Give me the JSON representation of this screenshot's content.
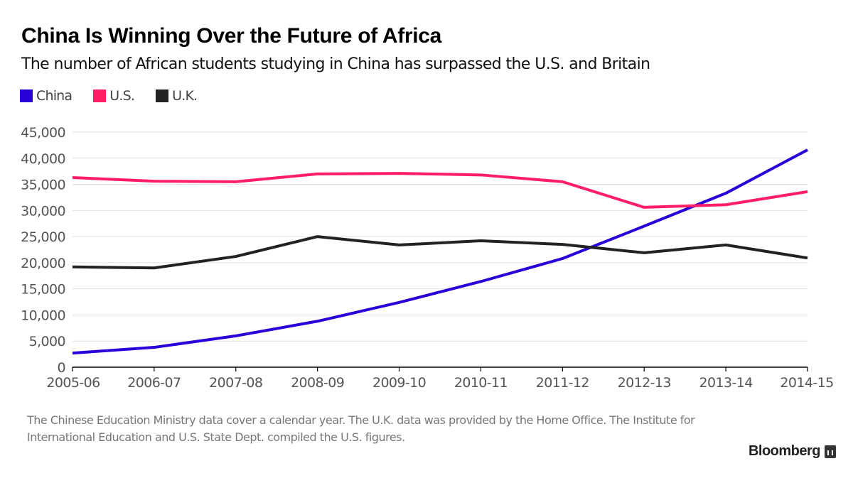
{
  "header": {
    "title": "China Is Winning Over the Future of Africa",
    "subtitle": "The number of African students studying in China has surpassed the U.S. and Britain"
  },
  "footnote": "The Chinese Education Ministry data cover a calendar year. The U.K. data was provided by the Home Office. The Institute for International Education and U.S. State Dept. compiled the U.S. figures.",
  "brand": "Bloomberg",
  "chart_data": {
    "type": "line",
    "title": "China Is Winning Over the Future of Africa",
    "subtitle": "The number of African students studying in China has surpassed the U.S. and Britain",
    "xlabel": "",
    "ylabel": "",
    "categories": [
      "2005-06",
      "2006-07",
      "2007-08",
      "2008-09",
      "2009-10",
      "2010-11",
      "2011-12",
      "2012-13",
      "2013-14",
      "2014-15"
    ],
    "ylim": [
      0,
      45000
    ],
    "yticks": [
      0,
      5000,
      10000,
      15000,
      20000,
      25000,
      30000,
      35000,
      40000,
      45000
    ],
    "ytick_labels": [
      "0",
      "5,000",
      "10,000",
      "15,000",
      "20,000",
      "25,000",
      "30,000",
      "35,000",
      "40,000",
      "45,000"
    ],
    "grid": true,
    "legend_position": "top-left",
    "series": [
      {
        "name": "China",
        "color": "#2a00d8",
        "values": [
          2700,
          3800,
          6000,
          8800,
          12400,
          16400,
          20800,
          27000,
          33300,
          41600
        ]
      },
      {
        "name": "U.S.",
        "color": "#ff1e66",
        "values": [
          36300,
          35600,
          35500,
          37000,
          37100,
          36800,
          35500,
          30600,
          31100,
          33600
        ]
      },
      {
        "name": "U.K.",
        "color": "#222222",
        "values": [
          19200,
          19000,
          21200,
          25000,
          23400,
          24200,
          23500,
          21900,
          23400,
          20900
        ]
      }
    ]
  }
}
